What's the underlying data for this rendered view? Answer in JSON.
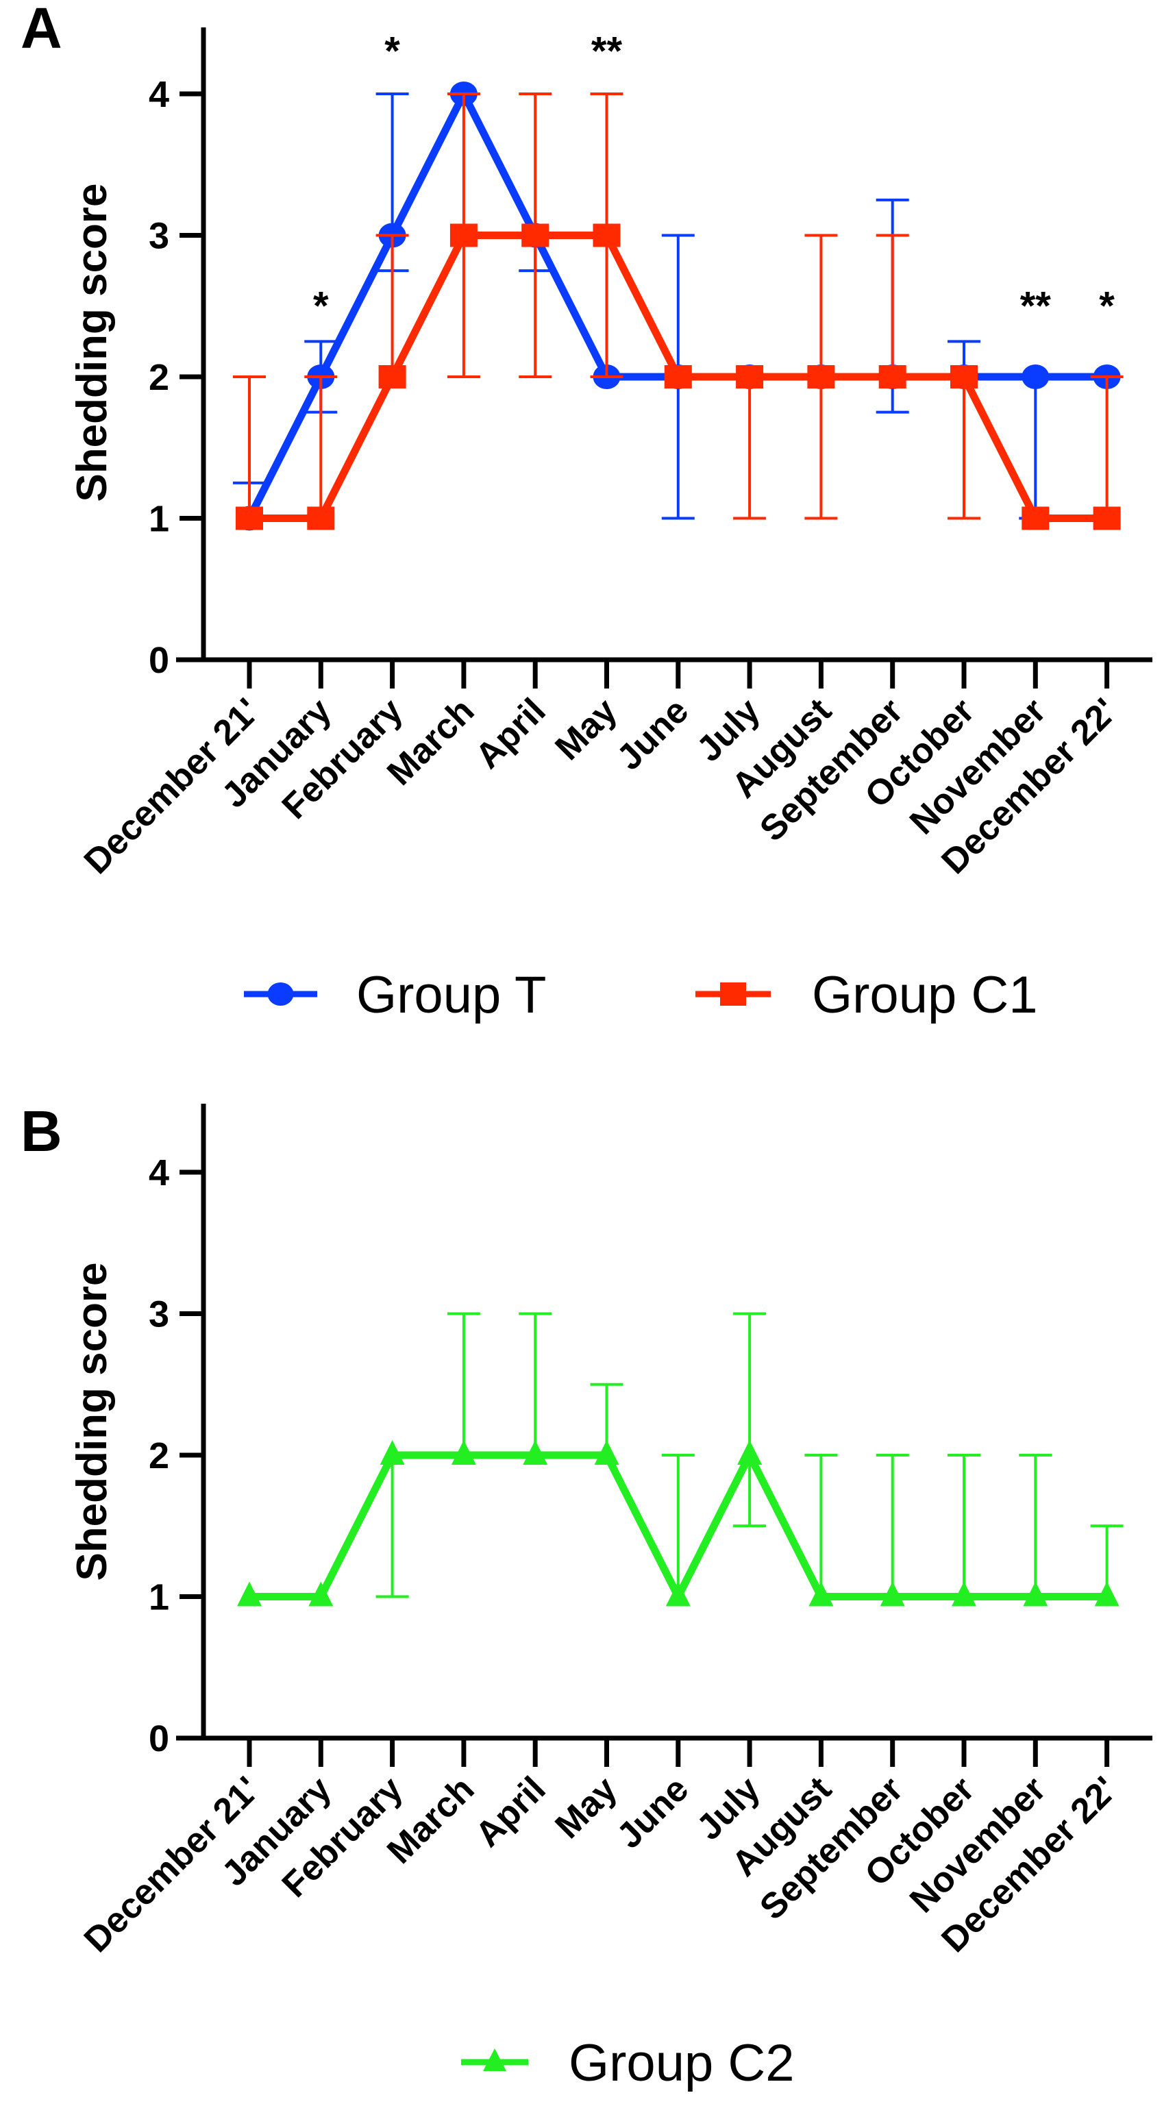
{
  "chart_data": [
    {
      "type": "line",
      "panel_label": "A",
      "ylabel": "Shedding score",
      "xlabel": "",
      "ylim": [
        0,
        4.5
      ],
      "yticks": [
        0,
        1,
        2,
        3,
        4
      ],
      "categories": [
        "December 21'",
        "January",
        "February",
        "March",
        "April",
        "May",
        "June",
        "July",
        "August",
        "September",
        "October",
        "November",
        "December 22'"
      ],
      "series": [
        {
          "name": "Group T",
          "color": "#0a3cff",
          "marker": "circle",
          "values": [
            1,
            2,
            3,
            4,
            3,
            2,
            2,
            2,
            2,
            2,
            2,
            2,
            2
          ],
          "err_low": [
            1,
            1.75,
            2.75,
            4,
            2.75,
            2,
            1,
            2,
            2,
            1.75,
            2,
            1,
            2
          ],
          "err_high": [
            1.25,
            2.25,
            4,
            4,
            3,
            2,
            3,
            2,
            2,
            3.25,
            2.25,
            2,
            2
          ]
        },
        {
          "name": "Group C1",
          "color": "#ff2a00",
          "marker": "square",
          "values": [
            1,
            1,
            2,
            3,
            3,
            3,
            2,
            2,
            2,
            2,
            2,
            1,
            1
          ],
          "err_low": [
            1,
            1,
            2,
            2,
            2,
            2,
            2,
            1,
            1,
            2,
            1,
            1,
            1
          ],
          "err_high": [
            2,
            2,
            3,
            4,
            4,
            4,
            2,
            2,
            3,
            3,
            2,
            1,
            2
          ]
        }
      ],
      "annotations": [
        {
          "category": "January",
          "text": "*",
          "y": 2.55
        },
        {
          "category": "February",
          "text": "*",
          "y": 4.35
        },
        {
          "category": "May",
          "text": "**",
          "y": 4.35
        },
        {
          "category": "November",
          "text": "**",
          "y": 2.55
        },
        {
          "category": "December 22'",
          "text": "*",
          "y": 2.55
        }
      ],
      "legend": "bottom"
    },
    {
      "type": "line",
      "panel_label": "B",
      "ylabel": "Shedding score",
      "xlabel": "",
      "ylim": [
        0,
        4.5
      ],
      "yticks": [
        0,
        1,
        2,
        3,
        4
      ],
      "categories": [
        "December 21'",
        "January",
        "February",
        "March",
        "April",
        "May",
        "June",
        "July",
        "August",
        "September",
        "October",
        "November",
        "December 22'"
      ],
      "series": [
        {
          "name": "Group C2",
          "color": "#22ee22",
          "marker": "triangle",
          "values": [
            1,
            1,
            2,
            2,
            2,
            2,
            1,
            2,
            1,
            1,
            1,
            1,
            1
          ],
          "err_low": [
            1,
            1,
            1,
            2,
            2,
            2,
            1,
            1.5,
            1,
            1,
            1,
            1,
            1
          ],
          "err_high": [
            1,
            1,
            2,
            3,
            3,
            2.5,
            2,
            3,
            2,
            2,
            2,
            2,
            1.5
          ]
        }
      ],
      "annotations": [],
      "legend": "bottom"
    }
  ]
}
